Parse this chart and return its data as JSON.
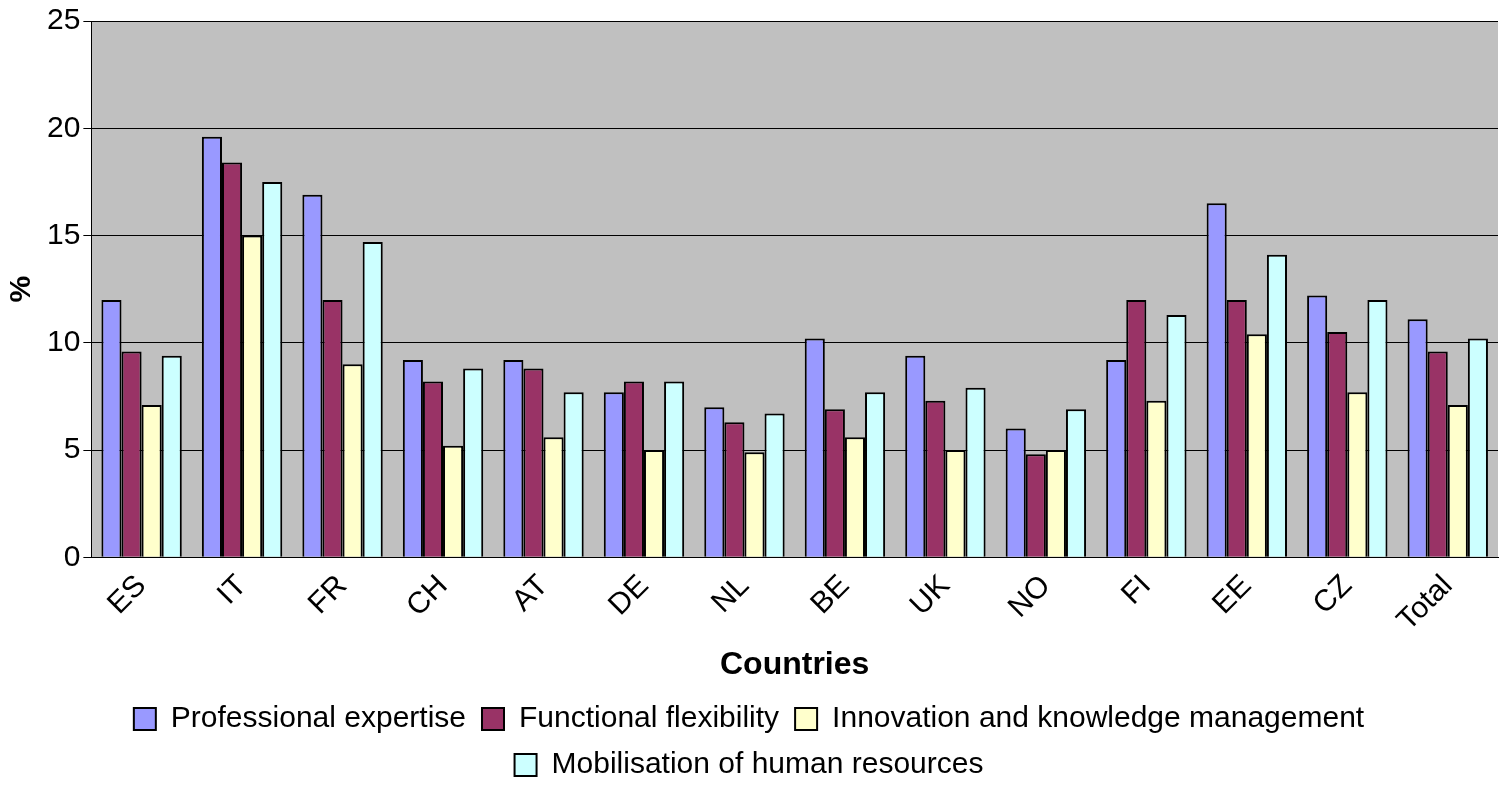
{
  "chart_data": {
    "type": "bar",
    "xlabel": "Countries",
    "ylabel": "%",
    "categories": [
      "ES",
      "IT",
      "FR",
      "CH",
      "AT",
      "DE",
      "NL",
      "BE",
      "UK",
      "NO",
      "FI",
      "EE",
      "CZ",
      "Total"
    ],
    "series": [
      {
        "name": "Professional expertise",
        "color": "#9999ff",
        "values": [
          12,
          19.6,
          16.9,
          9.2,
          9.2,
          7.7,
          7,
          10.2,
          9.4,
          6,
          9.2,
          16.5,
          12.2,
          11.1
        ]
      },
      {
        "name": "Functional flexibility",
        "color": "#993366",
        "values": [
          9.6,
          18.4,
          12,
          8.2,
          8.8,
          8.2,
          6.3,
          6.9,
          7.3,
          4.8,
          12,
          12,
          10.5,
          9.6
        ]
      },
      {
        "name": "Innovation and knowledge management",
        "color": "#ffffcc",
        "values": [
          7.1,
          15,
          9,
          5.2,
          5.6,
          5,
          4.9,
          5.6,
          5,
          5,
          7.3,
          10.4,
          7.7,
          7.1
        ]
      },
      {
        "name": "Mobilisation of human resources",
        "color": "#ccffff",
        "values": [
          9.4,
          17.5,
          14.7,
          8.8,
          7.7,
          8.2,
          6.7,
          7.7,
          7.9,
          6.9,
          11.3,
          14.1,
          12,
          10.2
        ]
      }
    ],
    "ylim": [
      0,
      25
    ],
    "yticks": [
      0,
      5,
      10,
      15,
      20,
      25
    ],
    "grid": "y",
    "legend": "bottom"
  }
}
